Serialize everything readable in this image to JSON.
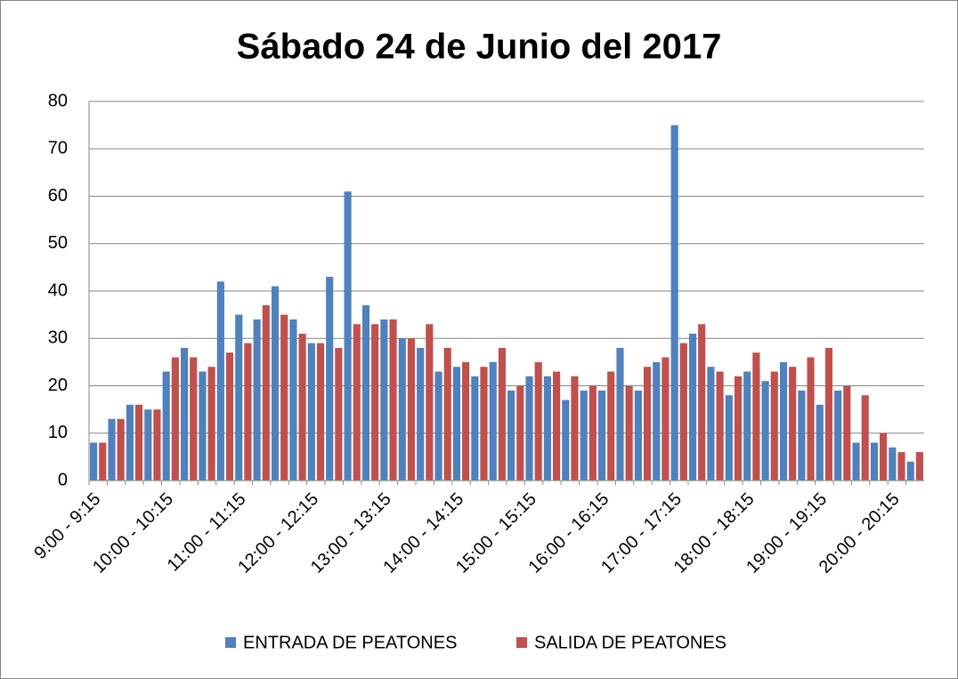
{
  "chart_data": {
    "type": "bar",
    "title": "Sábado 24 de Junio del 2017",
    "categories": [
      "9:00 - 9:15",
      null,
      null,
      null,
      "10:00 - 10:15",
      null,
      null,
      null,
      "11:00 - 11:15",
      null,
      null,
      null,
      "12:00 - 12:15",
      null,
      null,
      null,
      "13:00 - 13:15",
      null,
      null,
      null,
      "14:00 - 14:15",
      null,
      null,
      null,
      "15:00 - 15:15",
      null,
      null,
      null,
      "16:00 - 16:15",
      null,
      null,
      null,
      "17:00 - 17:15",
      null,
      null,
      null,
      "18:00 - 18:15",
      null,
      null,
      null,
      "19:00 - 19:15",
      null,
      null,
      null,
      "20:00 - 20:15",
      null
    ],
    "series": [
      {
        "name": "ENTRADA DE PEATONES",
        "color": "#4f81bd",
        "values": [
          8,
          13,
          16,
          15,
          23,
          28,
          23,
          42,
          35,
          34,
          41,
          34,
          29,
          43,
          61,
          37,
          34,
          30,
          28,
          23,
          24,
          22,
          25,
          19,
          22,
          22,
          17,
          19,
          19,
          28,
          19,
          25,
          75,
          31,
          24,
          18,
          23,
          21,
          25,
          19,
          16,
          19,
          8,
          8,
          7,
          4
        ]
      },
      {
        "name": "SALIDA DE PEATONES",
        "color": "#c0504d",
        "values": [
          8,
          13,
          16,
          15,
          26,
          26,
          24,
          27,
          29,
          37,
          35,
          31,
          29,
          28,
          33,
          33,
          34,
          30,
          33,
          28,
          25,
          24,
          28,
          20,
          25,
          23,
          22,
          20,
          23,
          20,
          24,
          26,
          29,
          33,
          23,
          22,
          27,
          23,
          24,
          26,
          28,
          20,
          18,
          10,
          6,
          6
        ]
      }
    ],
    "ylim": [
      0,
      80
    ],
    "yticks": [
      0,
      10,
      20,
      30,
      40,
      50,
      60,
      70,
      80
    ],
    "grid": true,
    "legend": "bottom"
  }
}
